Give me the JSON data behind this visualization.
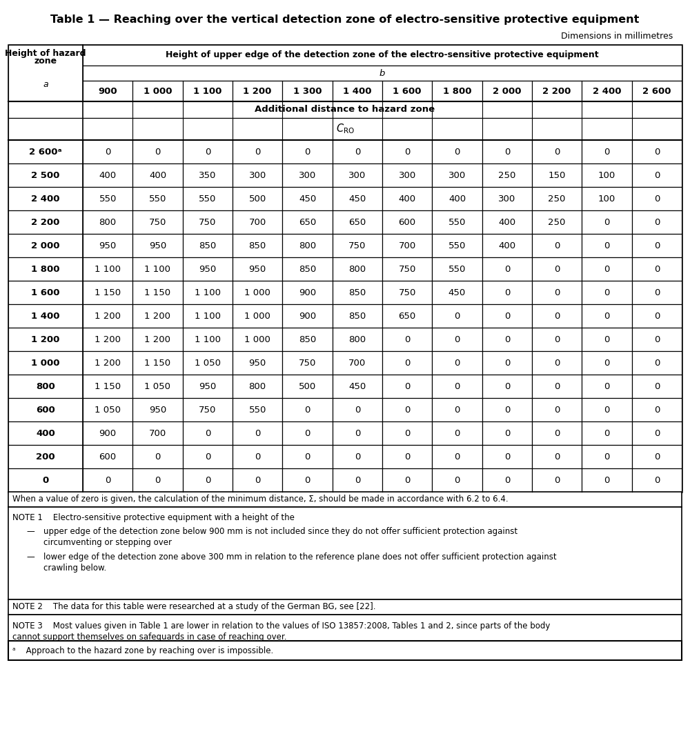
{
  "title": "Table 1 — Reaching over the vertical detection zone of electro-sensitive protective equipment",
  "subtitle": "Dimensions in millimetres",
  "col_headers": [
    "900",
    "1 000",
    "1 100",
    "1 200",
    "1 300",
    "1 400",
    "1 600",
    "1 800",
    "2 000",
    "2 200",
    "2 400",
    "2 600"
  ],
  "row_headers": [
    "2 600ᵃ",
    "2 500",
    "2 400",
    "2 200",
    "2 000",
    "1 800",
    "1 600",
    "1 400",
    "1 200",
    "1 000",
    "800",
    "600",
    "400",
    "200",
    "0"
  ],
  "data_formatted": [
    [
      "0",
      "0",
      "0",
      "0",
      "0",
      "0",
      "0",
      "0",
      "0",
      "0",
      "0",
      "0"
    ],
    [
      "400",
      "400",
      "350",
      "300",
      "300",
      "300",
      "300",
      "300",
      "250",
      "150",
      "100",
      "0"
    ],
    [
      "550",
      "550",
      "550",
      "500",
      "450",
      "450",
      "400",
      "400",
      "300",
      "250",
      "100",
      "0"
    ],
    [
      "800",
      "750",
      "750",
      "700",
      "650",
      "650",
      "600",
      "550",
      "400",
      "250",
      "0",
      "0"
    ],
    [
      "950",
      "950",
      "850",
      "850",
      "800",
      "750",
      "700",
      "550",
      "400",
      "0",
      "0",
      "0"
    ],
    [
      "1 100",
      "1 100",
      "950",
      "950",
      "850",
      "800",
      "750",
      "550",
      "0",
      "0",
      "0",
      "0"
    ],
    [
      "1 150",
      "1 150",
      "1 100",
      "1 000",
      "900",
      "850",
      "750",
      "450",
      "0",
      "0",
      "0",
      "0"
    ],
    [
      "1 200",
      "1 200",
      "1 100",
      "1 000",
      "900",
      "850",
      "650",
      "0",
      "0",
      "0",
      "0",
      "0"
    ],
    [
      "1 200",
      "1 200",
      "1 100",
      "1 000",
      "850",
      "800",
      "0",
      "0",
      "0",
      "0",
      "0",
      "0"
    ],
    [
      "1 200",
      "1 150",
      "1 050",
      "950",
      "750",
      "700",
      "0",
      "0",
      "0",
      "0",
      "0",
      "0"
    ],
    [
      "1 150",
      "1 050",
      "950",
      "800",
      "500",
      "450",
      "0",
      "0",
      "0",
      "0",
      "0",
      "0"
    ],
    [
      "1 050",
      "950",
      "750",
      "550",
      "0",
      "0",
      "0",
      "0",
      "0",
      "0",
      "0",
      "0"
    ],
    [
      "900",
      "700",
      "0",
      "0",
      "0",
      "0",
      "0",
      "0",
      "0",
      "0",
      "0",
      "0"
    ],
    [
      "600",
      "0",
      "0",
      "0",
      "0",
      "0",
      "0",
      "0",
      "0",
      "0",
      "0",
      "0"
    ],
    [
      "0",
      "0",
      "0",
      "0",
      "0",
      "0",
      "0",
      "0",
      "0",
      "0",
      "0",
      "0"
    ]
  ],
  "text_color": "#000000",
  "font_family": "DejaVu Sans",
  "title_fontsize": 11.5,
  "note_fontsize": 8.5,
  "cell_fontsize": 9.5
}
